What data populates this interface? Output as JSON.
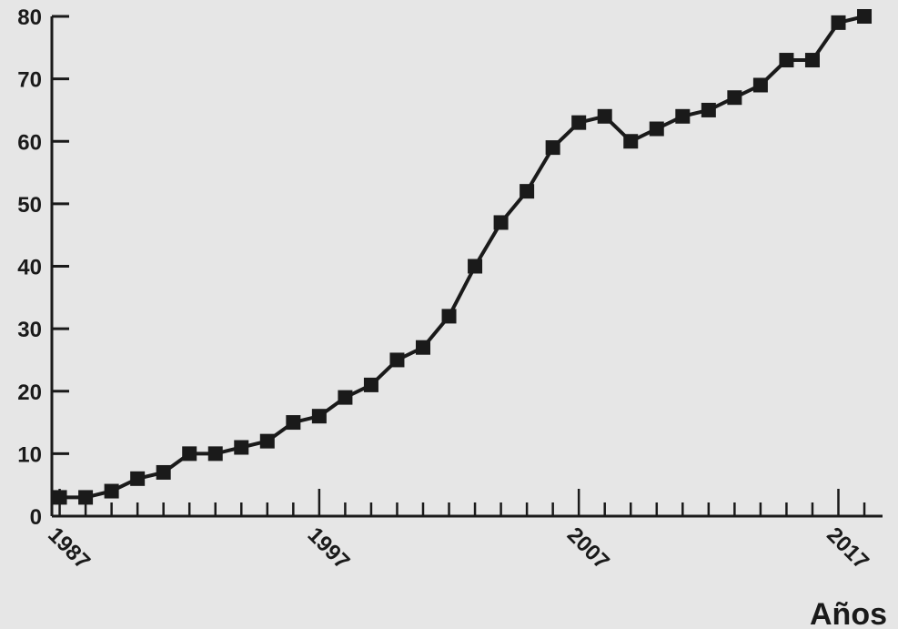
{
  "chart_data": {
    "type": "line",
    "title": "",
    "xlabel": "Años",
    "ylabel": "",
    "xlim": [
      1986.7,
      2018.7
    ],
    "ylim": [
      0,
      80
    ],
    "x_tick_labels": [
      "1987",
      "1997",
      "2007",
      "2017"
    ],
    "y_tick_labels": [
      "0",
      "10",
      "20",
      "30",
      "40",
      "50",
      "60",
      "70",
      "80"
    ],
    "grid": false,
    "legend": "none",
    "colors": {
      "line": "#1a1a1a",
      "axis": "#1a1a1a",
      "background": "#e6e6e6"
    },
    "series": [
      {
        "x": [
          1987,
          1988,
          1989,
          1990,
          1991,
          1992,
          1993,
          1994,
          1995,
          1996,
          1997,
          1998,
          1999,
          2000,
          2001,
          2002,
          2003,
          2004,
          2005,
          2006,
          2007,
          2008,
          2009,
          2010,
          2011,
          2012,
          2013,
          2014,
          2015,
          2016,
          2017,
          2018
        ],
        "values": [
          3,
          3,
          4,
          6,
          7,
          10,
          10,
          11,
          12,
          15,
          16,
          19,
          21,
          25,
          27,
          32,
          40,
          47,
          52,
          59,
          63,
          64,
          60,
          62,
          64,
          65,
          67,
          69,
          73,
          73,
          79,
          80
        ]
      }
    ]
  }
}
